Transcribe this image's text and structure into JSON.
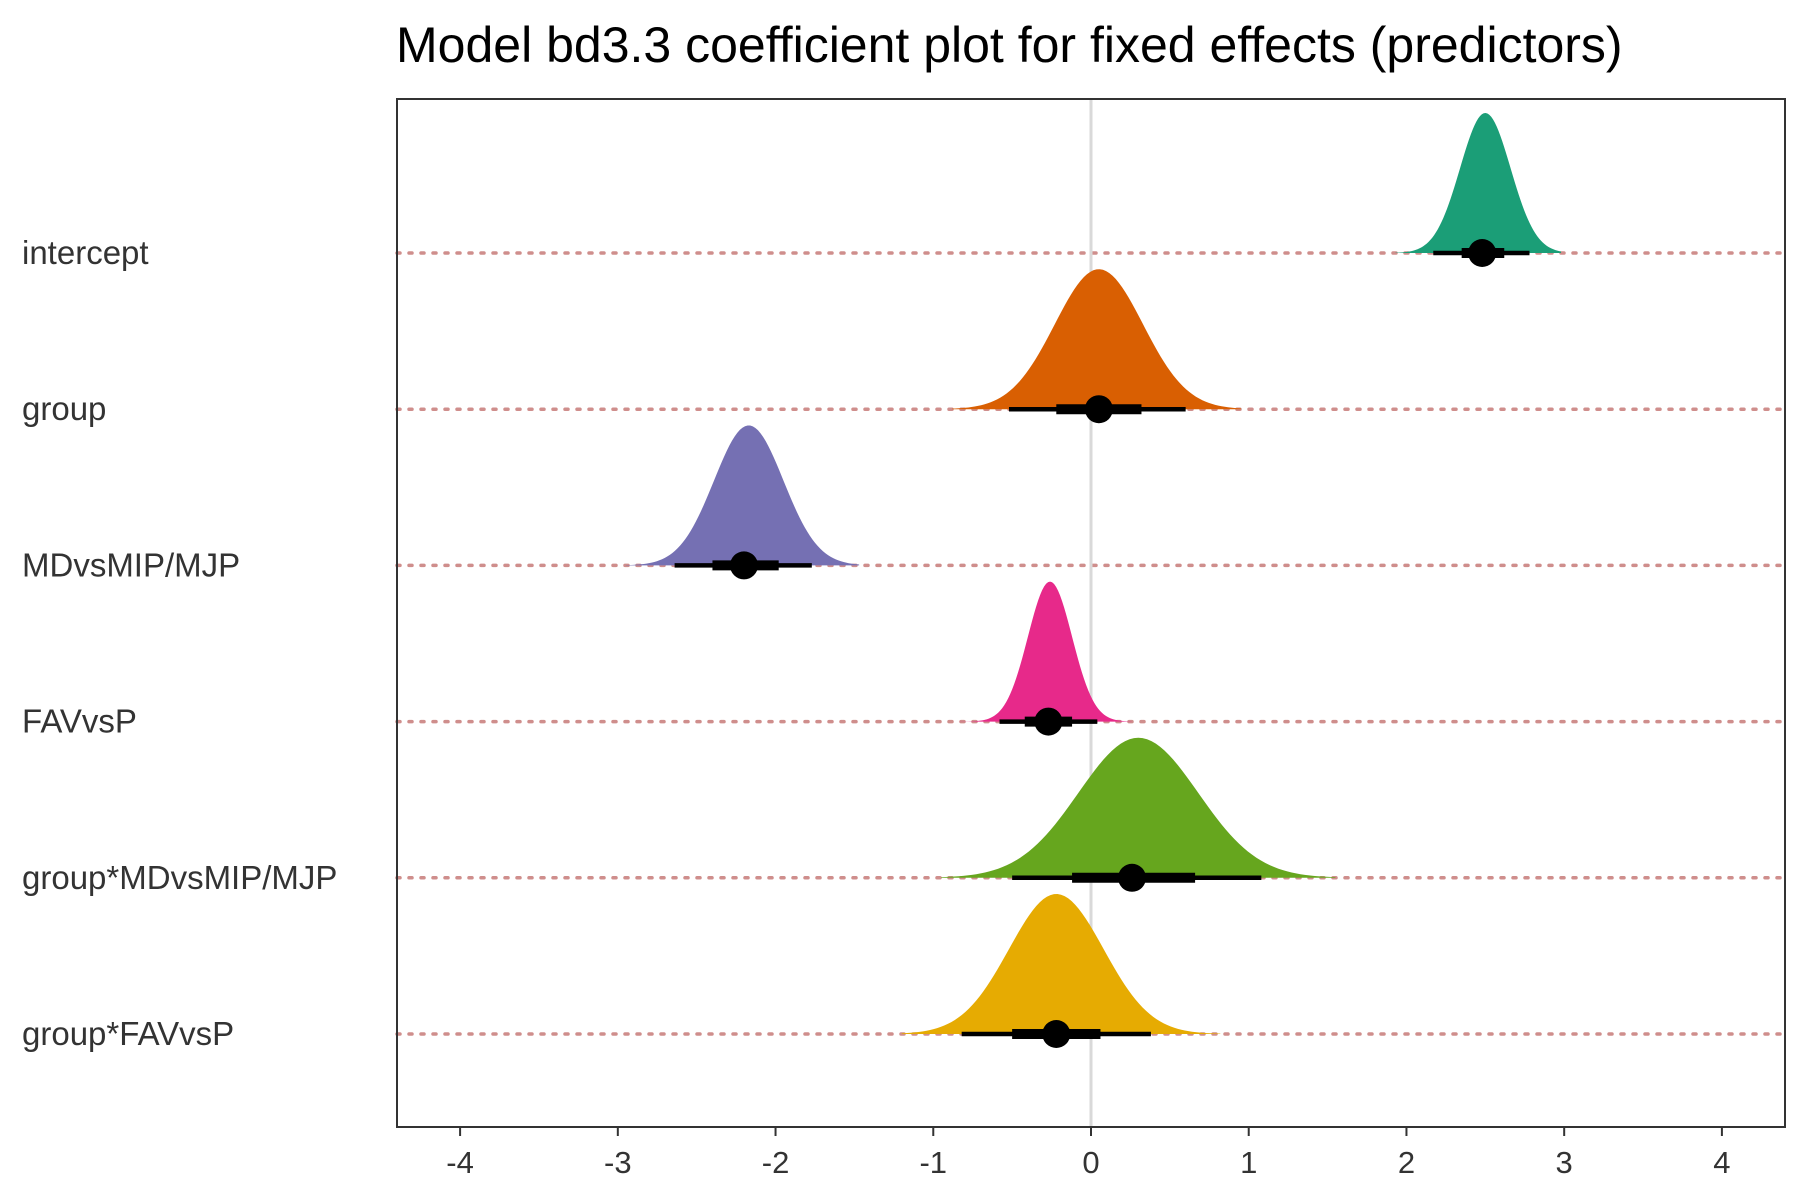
{
  "chart_data": {
    "type": "density-interval",
    "title": "Model bd3.3 coefficient plot for fixed effects (predictors)",
    "xlim": [
      -4.4,
      4.4
    ],
    "x_ticks": [
      -4,
      -3,
      -2,
      -1,
      0,
      1,
      2,
      3,
      4
    ],
    "x_tick_labels": [
      "-4",
      "-3",
      "-2",
      "-1",
      "0",
      "1",
      "2",
      "3",
      "4"
    ],
    "reference_line": 0,
    "grid": false,
    "series": [
      {
        "name": "intercept",
        "color": "#1b9e77",
        "median": 2.48,
        "interval_66": [
          2.35,
          2.62
        ],
        "interval_95": [
          2.17,
          2.78
        ],
        "density_range": [
          1.93,
          2.98
        ],
        "density_peak": 2.5,
        "density_sd": 0.16
      },
      {
        "name": "group",
        "color": "#d95f02",
        "median": 0.05,
        "interval_66": [
          -0.22,
          0.32
        ],
        "interval_95": [
          -0.52,
          0.6
        ],
        "density_range": [
          -0.88,
          0.95
        ],
        "density_peak": 0.05,
        "density_sd": 0.28
      },
      {
        "name": "MDvsMIP/MJP",
        "color": "#7570b3",
        "median": -2.2,
        "interval_66": [
          -2.4,
          -1.98
        ],
        "interval_95": [
          -2.64,
          -1.77
        ],
        "density_range": [
          -2.95,
          -1.47
        ],
        "density_peak": -2.17,
        "density_sd": 0.22
      },
      {
        "name": "FAVvsP",
        "color": "#e7298a",
        "median": -0.27,
        "interval_66": [
          -0.42,
          -0.12
        ],
        "interval_95": [
          -0.58,
          0.04
        ],
        "density_range": [
          -0.88,
          0.26
        ],
        "density_peak": -0.26,
        "density_sd": 0.14
      },
      {
        "name": "group*MDvsMIP/MJP",
        "color": "#66a61e",
        "median": 0.26,
        "interval_66": [
          -0.12,
          0.66
        ],
        "interval_95": [
          -0.5,
          1.08
        ],
        "density_range": [
          -0.95,
          1.55
        ],
        "density_peak": 0.3,
        "density_sd": 0.38
      },
      {
        "name": "group*FAVvsP",
        "color": "#e6ab02",
        "median": -0.22,
        "interval_66": [
          -0.5,
          0.06
        ],
        "interval_95": [
          -0.82,
          0.38
        ],
        "density_range": [
          -1.2,
          0.82
        ],
        "density_peak": -0.22,
        "density_sd": 0.3
      }
    ]
  }
}
